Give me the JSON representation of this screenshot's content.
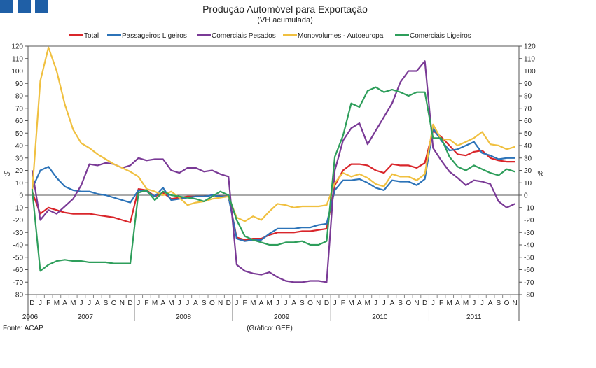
{
  "colors": {
    "total": "#d9262b",
    "passageiros": "#2c73b8",
    "comerciais_pesados": "#7a3a96",
    "monovolumes": "#f0c040",
    "comerciais_ligeiros": "#2e9e5b",
    "logo": "#1f5fa6"
  },
  "footer": {
    "source": "Fonte: ACAP",
    "credit": "(Gráfico: GEE)"
  },
  "chart_data": {
    "type": "line",
    "title": "Produção Automóvel para Exportação",
    "subtitle": "(VH acumulada)",
    "ylabel_left": "%",
    "ylabel_right": "%",
    "ylim": [
      -80,
      120
    ],
    "yticks": [
      120,
      110,
      100,
      90,
      80,
      70,
      60,
      50,
      40,
      30,
      20,
      10,
      0,
      -10,
      -20,
      -30,
      -40,
      -50,
      -60,
      -70,
      -80
    ],
    "month_labels": [
      "D",
      "J",
      "F",
      "M",
      "A",
      "M",
      "J",
      "J",
      "A",
      "S",
      "O",
      "N",
      "D",
      "J",
      "F",
      "M",
      "A",
      "M",
      "J",
      "J",
      "A",
      "S",
      "O",
      "N",
      "D",
      "J",
      "F",
      "M",
      "A",
      "M",
      "J",
      "J",
      "A",
      "S",
      "O",
      "N",
      "D",
      "J",
      "F",
      "M",
      "A",
      "M",
      "J",
      "J",
      "A",
      "S",
      "O",
      "N",
      "D",
      "J",
      "F",
      "M",
      "A",
      "M",
      "J",
      "J",
      "A",
      "S",
      "O",
      "N"
    ],
    "year_labels": [
      "2006",
      "2007",
      "2008",
      "2009",
      "2010",
      "2011"
    ],
    "legend_position": "top",
    "series": [
      {
        "name": "Total",
        "color_key": "total",
        "values": [
          3,
          -15,
          -10,
          -12,
          -14,
          -15,
          -15,
          -15,
          -16,
          -17,
          -18,
          -20,
          -22,
          5,
          4,
          -1,
          2,
          -3,
          -2,
          -1,
          -1,
          -1,
          0,
          -1,
          -1,
          -34,
          -36,
          -35,
          -35,
          -32,
          -30,
          -30,
          -30,
          -29,
          -29,
          -28,
          -27,
          8,
          20,
          25,
          25,
          24,
          20,
          18,
          25,
          24,
          24,
          22,
          26,
          52,
          47,
          40,
          33,
          32,
          35,
          36,
          30,
          28,
          27,
          27
        ]
      },
      {
        "name": "Passageiros Ligeiros",
        "color_key": "passageiros",
        "values": [
          5,
          20,
          23,
          14,
          7,
          4,
          3,
          3,
          1,
          0,
          -2,
          -4,
          -6,
          4,
          3,
          -1,
          6,
          -4,
          -3,
          -2,
          -1,
          -1,
          0,
          -1,
          -1,
          -35,
          -37,
          -36,
          -36,
          -31,
          -27,
          -27,
          -27,
          -26,
          -26,
          -24,
          -23,
          4,
          12,
          12,
          13,
          10,
          6,
          4,
          12,
          11,
          11,
          8,
          13,
          54,
          44,
          36,
          37,
          40,
          43,
          34,
          32,
          29,
          30,
          30
        ]
      },
      {
        "name": "Comerciais Pesados",
        "color_key": "comerciais_pesados",
        "values": [
          20,
          -20,
          -12,
          -15,
          -9,
          -3,
          8,
          25,
          24,
          26,
          25,
          22,
          24,
          30,
          28,
          29,
          29,
          20,
          18,
          22,
          22,
          19,
          20,
          17,
          15,
          -56,
          -61,
          -63,
          -64,
          -62,
          -66,
          -69,
          -70,
          -70,
          -69,
          -69,
          -70,
          20,
          44,
          54,
          58,
          41,
          52,
          63,
          74,
          91,
          100,
          100,
          108,
          38,
          28,
          19,
          14,
          8,
          12,
          11,
          9,
          -5,
          -10,
          -7
        ]
      },
      {
        "name": "Monovolumes - Autoeuropa",
        "color_key": "monovolumes",
        "values": [
          2,
          92,
          119,
          100,
          73,
          53,
          42,
          38,
          33,
          29,
          25,
          22,
          19,
          15,
          5,
          3,
          0,
          3,
          -2,
          -8,
          -6,
          -5,
          -3,
          -2,
          -1,
          -18,
          -21,
          -17,
          -20,
          -13,
          -7,
          -8,
          -10,
          -9,
          -9,
          -9,
          -8,
          10,
          18,
          15,
          17,
          14,
          9,
          7,
          17,
          15,
          15,
          12,
          17,
          57,
          45,
          45,
          40,
          43,
          46,
          51,
          41,
          40,
          37,
          39
        ]
      },
      {
        "name": "Comerciais Ligeiros",
        "color_key": "comerciais_ligeiros",
        "values": [
          5,
          -61,
          -56,
          -53,
          -52,
          -53,
          -53,
          -54,
          -54,
          -54,
          -55,
          -55,
          -55,
          2,
          4,
          -4,
          3,
          0,
          -1,
          -2,
          -3,
          -5,
          -1,
          3,
          0,
          -20,
          -33,
          -36,
          -38,
          -40,
          -40,
          -38,
          -38,
          -37,
          -40,
          -40,
          -37,
          31,
          48,
          74,
          71,
          84,
          87,
          83,
          85,
          83,
          80,
          83,
          83,
          46,
          46,
          31,
          23,
          20,
          24,
          21,
          18,
          16,
          21,
          19
        ]
      }
    ]
  }
}
